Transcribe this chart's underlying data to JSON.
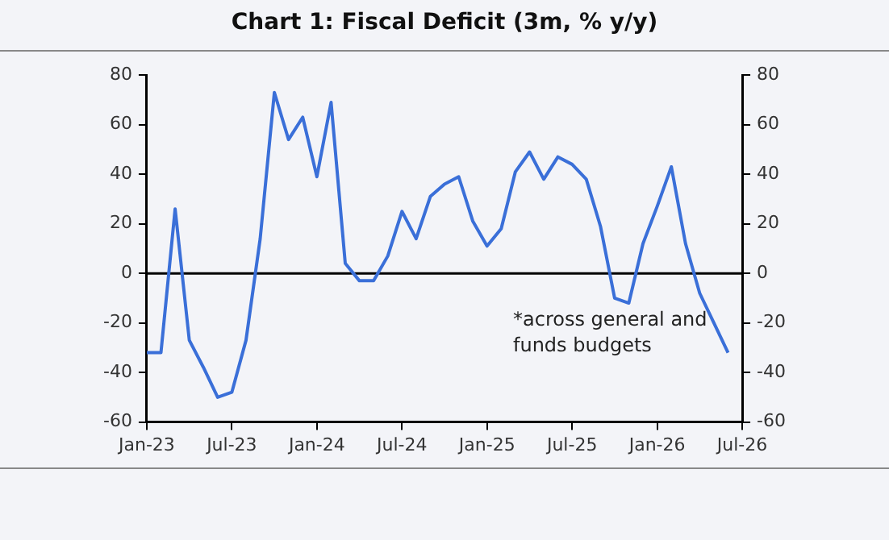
{
  "chart_data": {
    "type": "line",
    "title": "Chart 1: Fiscal Deficit (3m, % y/y)",
    "x": [
      "2023-01",
      "2023-02",
      "2023-03",
      "2023-04",
      "2023-05",
      "2023-06",
      "2023-07",
      "2023-08",
      "2023-09",
      "2023-10",
      "2023-11",
      "2023-12",
      "2024-01",
      "2024-02",
      "2024-03",
      "2024-04",
      "2024-05",
      "2024-06",
      "2024-07",
      "2024-08",
      "2024-09",
      "2024-10",
      "2024-11",
      "2024-12",
      "2025-01",
      "2025-02",
      "2025-03",
      "2025-04",
      "2025-05",
      "2025-06",
      "2025-07",
      "2025-08",
      "2025-09",
      "2025-10",
      "2025-11",
      "2025-12",
      "2026-01",
      "2026-02",
      "2026-03",
      "2026-04",
      "2026-05",
      "2026-06"
    ],
    "series": [
      {
        "color": "#3a6fd8",
        "values": [
          -32,
          -32,
          26,
          -27,
          -38,
          -50,
          -48,
          -27,
          14,
          73,
          54,
          63,
          39,
          69,
          4,
          -3,
          -3,
          7,
          25,
          14,
          31,
          36,
          39,
          21,
          11,
          18,
          41,
          49,
          38,
          47,
          44,
          38,
          19,
          -10,
          -12,
          12,
          27,
          43,
          12,
          -8,
          -20,
          -32
        ]
      }
    ],
    "xlim": [
      "2023-01",
      "2026-07"
    ],
    "xticks": [
      {
        "value": "2023-01",
        "label": "Jan-23"
      },
      {
        "value": "2023-07",
        "label": "Jul-23"
      },
      {
        "value": "2024-01",
        "label": "Jan-24"
      },
      {
        "value": "2024-07",
        "label": "Jul-24"
      },
      {
        "value": "2025-01",
        "label": "Jan-25"
      },
      {
        "value": "2025-07",
        "label": "Jul-25"
      },
      {
        "value": "2026-01",
        "label": "Jan-26"
      },
      {
        "value": "2026-07",
        "label": "Jul-26"
      }
    ],
    "ylim": [
      -60,
      80
    ],
    "yticks": [
      -60,
      -40,
      -20,
      0,
      20,
      40,
      60,
      80
    ],
    "y2lim": [
      -60,
      80
    ],
    "y2ticks": [
      -60,
      -40,
      -20,
      0,
      20,
      40,
      60,
      80
    ],
    "ref_lines": [
      {
        "axis": "y",
        "value": 0,
        "color": "#000000"
      }
    ],
    "annotations": [
      "*across general and funds budgets"
    ],
    "grid": false,
    "legend": false,
    "marker": "none",
    "line_style": "solid"
  }
}
